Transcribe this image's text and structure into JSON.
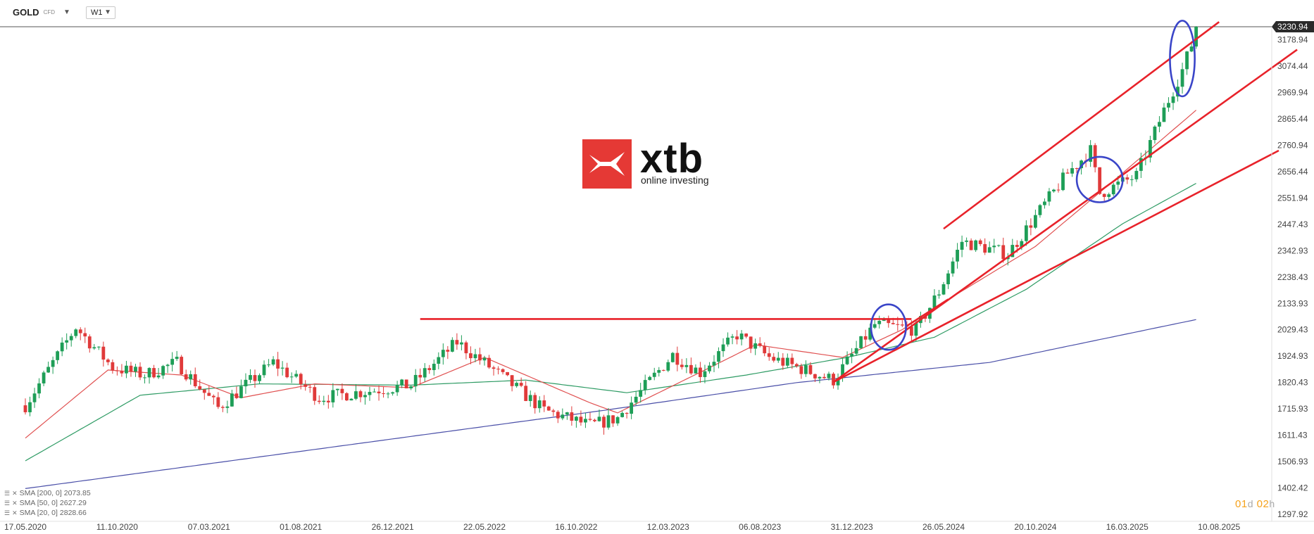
{
  "header": {
    "symbol": "GOLD",
    "instrument_type": "CFD",
    "timeframe": "W1"
  },
  "logo": {
    "brand": "xtb",
    "tagline": "online investing"
  },
  "legend": [
    {
      "label": "SMA [200, 0]",
      "value": "2073.85"
    },
    {
      "label": "SMA [50, 0]",
      "value": "2627.29"
    },
    {
      "label": "SMA [20, 0]",
      "value": "2828.66"
    }
  ],
  "timer": {
    "days": "01",
    "days_unit": "d",
    "hours": "02",
    "hours_unit": "h"
  },
  "colors": {
    "up": "#1e9e57",
    "down": "#e03a3a",
    "sma20": "#e05050",
    "sma50": "#2e9b64",
    "sma200": "#4a4fa8",
    "trendline": "#e8222a",
    "ellipse": "#3a45c8",
    "price_label_bg": "#2a2a2a"
  },
  "chart_data": {
    "type": "candlestick",
    "y_ticks": [
      "3178.94",
      "3074.44",
      "2969.94",
      "2865.44",
      "2760.94",
      "2656.44",
      "2551.94",
      "2447.43",
      "2342.93",
      "2238.43",
      "2133.93",
      "2029.43",
      "1924.93",
      "1820.43",
      "1715.93",
      "1611.43",
      "1506.93",
      "1402.42",
      "1297.92"
    ],
    "x_ticks": [
      "17.05.2020",
      "11.10.2020",
      "07.03.2021",
      "01.08.2021",
      "26.12.2021",
      "22.05.2022",
      "16.10.2022",
      "12.03.2023",
      "06.08.2023",
      "31.12.2023",
      "26.05.2024",
      "20.10.2024",
      "16.03.2025",
      "10.08.2025"
    ],
    "current_price": "3230.94",
    "ylim": [
      1297.92,
      3230.94
    ],
    "anchors": [
      [
        "2020-05-17",
        1730
      ],
      [
        "2020-08-02",
        2040
      ],
      [
        "2020-09-27",
        1880
      ],
      [
        "2020-11-15",
        1850
      ],
      [
        "2021-01-03",
        1900
      ],
      [
        "2021-03-07",
        1720
      ],
      [
        "2021-05-30",
        1900
      ],
      [
        "2021-08-08",
        1760
      ],
      [
        "2021-10-31",
        1790
      ],
      [
        "2021-12-26",
        1810
      ],
      [
        "2022-03-06",
        1980
      ],
      [
        "2022-05-01",
        1870
      ],
      [
        "2022-07-17",
        1710
      ],
      [
        "2022-09-25",
        1650
      ],
      [
        "2022-11-06",
        1680
      ],
      [
        "2023-01-29",
        1930
      ],
      [
        "2023-03-12",
        1860
      ],
      [
        "2023-05-07",
        2010
      ],
      [
        "2023-06-25",
        1920
      ],
      [
        "2023-10-01",
        1830
      ],
      [
        "2023-12-03",
        2050
      ],
      [
        "2024-02-04",
        2030
      ],
      [
        "2024-03-10",
        2180
      ],
      [
        "2024-04-14",
        2380
      ],
      [
        "2024-06-23",
        2330
      ],
      [
        "2024-09-22",
        2650
      ],
      [
        "2024-10-27",
        2740
      ],
      [
        "2024-11-10",
        2570
      ],
      [
        "2025-01-05",
        2640
      ],
      [
        "2025-02-16",
        2900
      ],
      [
        "2025-03-16",
        3060
      ],
      [
        "2025-04-06",
        3210
      ]
    ],
    "sma20": [
      [
        "2020-05-17",
        1600
      ],
      [
        "2020-09-20",
        1870
      ],
      [
        "2021-01-10",
        1850
      ],
      [
        "2021-04-11",
        1760
      ],
      [
        "2021-08-01",
        1815
      ],
      [
        "2021-12-26",
        1800
      ],
      [
        "2022-04-17",
        1920
      ],
      [
        "2022-09-25",
        1740
      ],
      [
        "2022-11-06",
        1700
      ],
      [
        "2023-03-19",
        1870
      ],
      [
        "2023-06-04",
        1970
      ],
      [
        "2023-10-15",
        1920
      ],
      [
        "2024-01-14",
        2030
      ],
      [
        "2024-03-24",
        2150
      ],
      [
        "2024-08-04",
        2360
      ],
      [
        "2024-12-01",
        2620
      ],
      [
        "2025-04-06",
        2900
      ]
    ],
    "sma50": [
      [
        "2020-05-17",
        1510
      ],
      [
        "2020-11-08",
        1770
      ],
      [
        "2021-05-09",
        1815
      ],
      [
        "2021-12-26",
        1810
      ],
      [
        "2022-06-19",
        1830
      ],
      [
        "2022-11-20",
        1780
      ],
      [
        "2023-05-21",
        1850
      ],
      [
        "2023-10-22",
        1920
      ],
      [
        "2024-03-03",
        2000
      ],
      [
        "2024-07-21",
        2190
      ],
      [
        "2024-12-15",
        2450
      ],
      [
        "2025-04-06",
        2610
      ]
    ],
    "sma200": [
      [
        "2020-05-17",
        1400
      ],
      [
        "2022-10-16",
        1710
      ],
      [
        "2023-08-06",
        1820
      ],
      [
        "2024-05-26",
        1900
      ],
      [
        "2025-04-06",
        2070
      ]
    ],
    "horizontal_level": {
      "value": 2072,
      "from": "2022-01-09",
      "to": "2024-01-28"
    },
    "trendlines": [
      {
        "from": [
          "2023-10-01",
          1822
        ],
        "to": [
          "2025-09-07",
          3140
        ]
      },
      {
        "from": [
          "2023-10-01",
          1822
        ],
        "to": [
          "2025-08-10",
          2740
        ]
      },
      {
        "from": [
          "2024-03-17",
          2430
        ],
        "to": [
          "2025-05-11",
          3250
        ]
      },
      {
        "from": [
          "2024-01-21",
          2045
        ],
        "to": [
          "2024-03-24",
          2150
        ]
      }
    ],
    "highlights": [
      {
        "center": [
          "2023-12-24",
          2040
        ],
        "rx_weeks": 3.8,
        "ry": 90
      },
      {
        "center": [
          "2024-11-10",
          2625
        ],
        "rx_weeks": 5.0,
        "ry": 90
      },
      {
        "center": [
          "2025-03-16",
          3105
        ],
        "rx_weeks": 2.7,
        "ry": 150
      }
    ]
  }
}
